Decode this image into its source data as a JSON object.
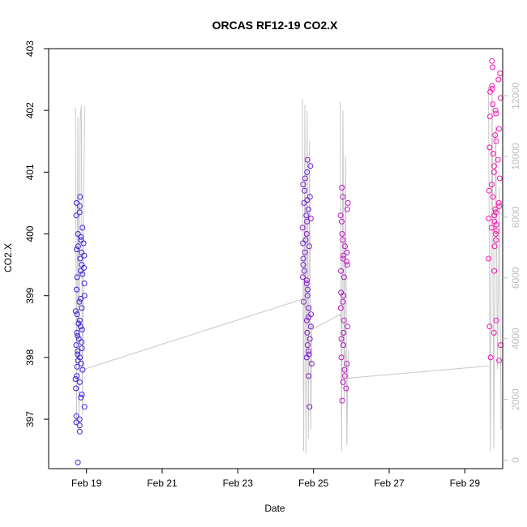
{
  "chart_data": {
    "type": "scatter",
    "title": "ORCAS RF12-19 CO2.X",
    "xlabel": "Date",
    "ylabel": "CO2.X",
    "x_ticks": [
      "Feb 19",
      "Feb 21",
      "Feb 23",
      "Feb 25",
      "Feb 27",
      "Feb 29"
    ],
    "y_ticks": [
      "397",
      "398",
      "399",
      "400",
      "401",
      "402",
      "403"
    ],
    "y2_ticks": [
      "0",
      "2000",
      "4000",
      "6000",
      "8000",
      "10000",
      "12000"
    ],
    "xlim": [
      "2016-02-18",
      "2016-03-01"
    ],
    "ylim": [
      396.2,
      403.0
    ],
    "y2lim": [
      -280,
      13550
    ],
    "colors": {
      "point_start": "#3b1fe0",
      "point_end": "#ff10b0",
      "altitude_line": "#c8c8c8"
    },
    "series": [
      {
        "x_range": [
          "2016-02-18T17:00",
          "2016-02-18T23:00"
        ],
        "co2_points": [
          400.6,
          400.5,
          400.35,
          400.3,
          399.9,
          399.8,
          399.7,
          399.6,
          399.5,
          399.4,
          399.3,
          399.2,
          399.1,
          399.0,
          398.9,
          398.8,
          398.7,
          398.6,
          398.5,
          398.4,
          398.3,
          398.2,
          398.1,
          398.0,
          397.9,
          397.8,
          397.7,
          397.6,
          397.5,
          397.4,
          397.2,
          397.0,
          396.9,
          396.8,
          396.3,
          400.1,
          400.0,
          399.85,
          399.65,
          399.35,
          398.95,
          398.55,
          398.35,
          398.15,
          397.95,
          397.65,
          397.35,
          397.05,
          400.45,
          399.95,
          399.75,
          399.45,
          398.75,
          398.45,
          398.25,
          398.05,
          397.85,
          396.95
        ],
        "altitude_points": [
          11600,
          1200,
          11300,
          1000,
          11200,
          11700,
          1500,
          9000,
          11650
        ]
      },
      {
        "x_range": [
          "2016-02-24T17:00",
          "2016-02-24T23:00"
        ],
        "co2_points": [
          401.2,
          401.1,
          401.0,
          400.9,
          400.8,
          400.7,
          400.6,
          400.5,
          400.4,
          400.3,
          400.2,
          400.1,
          400.0,
          399.9,
          399.8,
          399.7,
          399.6,
          399.5,
          399.4,
          399.3,
          399.2,
          399.1,
          399.0,
          398.9,
          398.8,
          398.7,
          398.6,
          398.5,
          398.4,
          398.3,
          398.2,
          398.1,
          398.0,
          397.9,
          397.7,
          397.2,
          400.55,
          400.25,
          399.85,
          399.25,
          398.65,
          398.05
        ],
        "altitude_points": [
          11900,
          300,
          11700,
          200,
          11500,
          700,
          10500,
          1000,
          4500
        ]
      },
      {
        "x_range": [
          "2016-02-25T17:00",
          "2016-02-25T22:00"
        ],
        "co2_points": [
          400.75,
          400.6,
          400.5,
          400.3,
          400.2,
          400.0,
          399.9,
          399.8,
          399.7,
          399.6,
          399.5,
          399.4,
          399.3,
          399.0,
          398.9,
          398.8,
          398.6,
          398.5,
          398.4,
          398.2,
          398.0,
          397.9,
          397.8,
          397.6,
          397.5,
          397.3,
          400.4,
          399.65,
          399.55,
          399.05,
          398.3,
          397.7
        ],
        "altitude_points": [
          11800,
          300,
          11500,
          2000,
          10000,
          500,
          3600
        ]
      },
      {
        "x_range": [
          "2016-02-29T15:00",
          "2016-02-29T23:00"
        ],
        "co2_points": [
          402.8,
          402.7,
          402.6,
          402.5,
          402.4,
          402.3,
          402.2,
          402.1,
          402.0,
          401.9,
          401.7,
          401.6,
          401.5,
          401.4,
          401.3,
          401.2,
          401.1,
          401.0,
          400.9,
          400.8,
          400.7,
          400.6,
          400.5,
          400.4,
          400.3,
          400.2,
          400.1,
          400.0,
          399.9,
          399.8,
          399.6,
          399.4,
          398.6,
          398.5,
          398.4,
          398.2,
          398.0,
          397.95,
          400.45,
          400.35,
          400.25,
          400.15,
          400.05,
          402.35,
          401.95
        ],
        "altitude_points": [
          12300,
          300,
          12200,
          400,
          11000,
          3000,
          9000,
          1000
        ]
      }
    ],
    "connector_points": [
      {
        "x": "2016-02-18T23:00",
        "alt": 3000
      },
      {
        "x": "2016-02-24T17:00",
        "alt": 5300
      },
      {
        "x": "2016-02-24T23:00",
        "alt": 4300
      },
      {
        "x": "2016-02-25T17:00",
        "alt": 4800
      },
      {
        "x": "2016-02-25T22:00",
        "alt": 2700
      },
      {
        "x": "2016-02-29T15:00",
        "alt": 3100
      }
    ]
  }
}
